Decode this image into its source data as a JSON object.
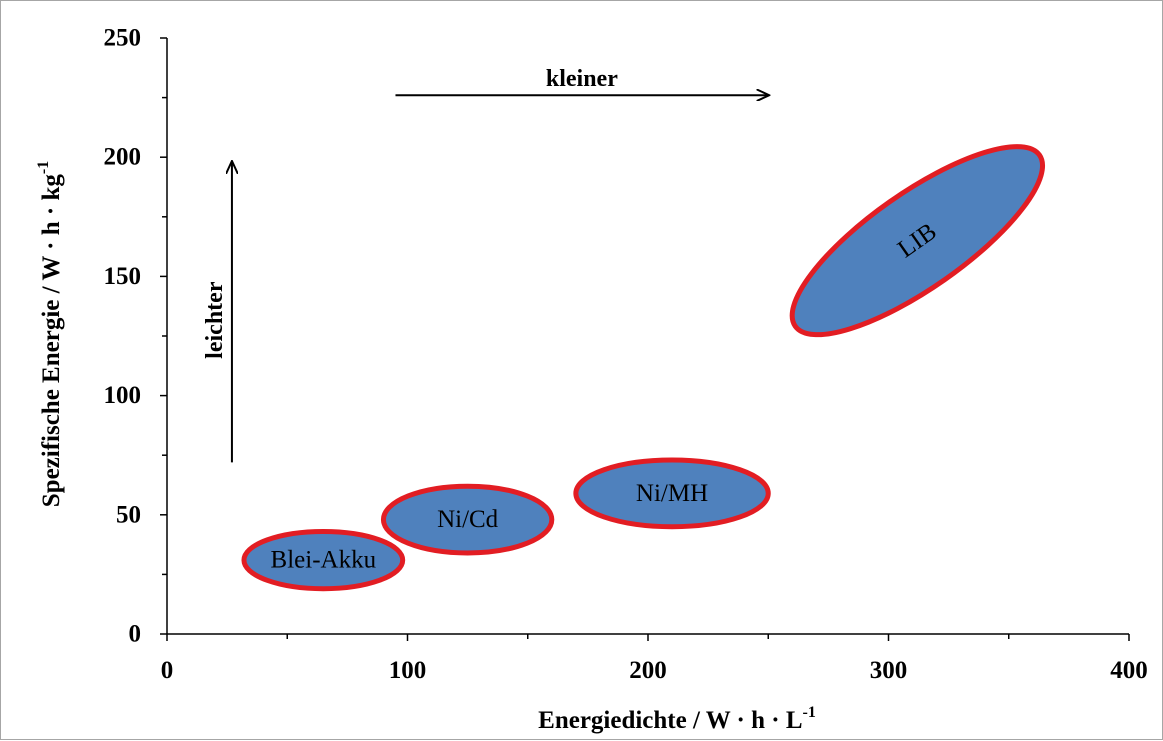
{
  "chart_data": {
    "type": "scatter",
    "x_axis": {
      "label": "Energiedichte / W · h · L",
      "label_sup": "-1",
      "lim": [
        0,
        400
      ],
      "major_ticks": [
        0,
        100,
        200,
        300,
        400
      ],
      "minor_step": 50
    },
    "y_axis": {
      "label": "Spezifische Energie / W · h · kg",
      "label_sup": "-1",
      "lim": [
        0,
        250
      ],
      "major_ticks": [
        0,
        50,
        100,
        150,
        200,
        250
      ],
      "minor_step": 25
    },
    "grid": false,
    "legend": "none",
    "regions": [
      {
        "name": "Blei-Akku",
        "cx": 65,
        "cy": 31,
        "rx": 33,
        "ry": 12,
        "angle": 0
      },
      {
        "name": "Ni/Cd",
        "cx": 125,
        "cy": 48,
        "rx": 35,
        "ry": 14,
        "angle": 0
      },
      {
        "name": "Ni/MH",
        "cx": 210,
        "cy": 59,
        "rx": 40,
        "ry": 14,
        "angle": 0
      },
      {
        "name": "LIB",
        "cx": 312,
        "cy": 165,
        "rx": 62,
        "ry": 20,
        "angle": -35
      }
    ],
    "annotations": [
      {
        "text": "kleiner",
        "direction": "right",
        "from": [
          95,
          226
        ],
        "to": [
          250,
          226
        ]
      },
      {
        "text": "leichter",
        "direction": "up",
        "from": [
          27,
          72
        ],
        "to": [
          27,
          198
        ]
      }
    ],
    "style": {
      "fill": "#4f81bd",
      "edge": "#e21d23",
      "axis": "#000000"
    }
  }
}
